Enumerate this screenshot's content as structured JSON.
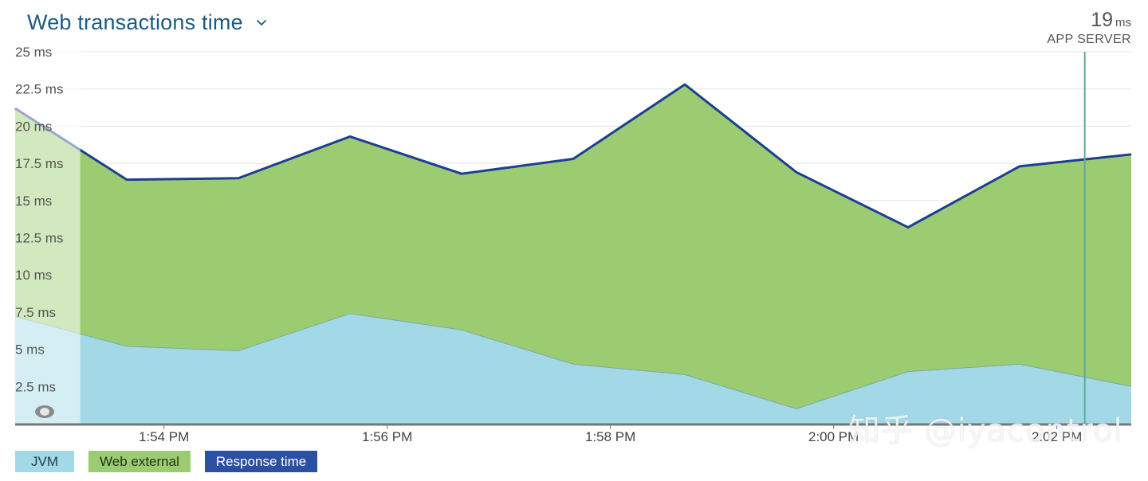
{
  "header": {
    "title": "Web transactions time"
  },
  "readout": {
    "value": "19",
    "unit": "ms",
    "label": "APP SERVER"
  },
  "legend": {
    "items": [
      "JVM",
      "Web external",
      "Response time"
    ]
  },
  "watermark": "知乎 @iyacontrol",
  "colors": {
    "jvm": "#a3d9e6",
    "web_external": "#9ccc72",
    "response_time": "#1d3f8f",
    "cursor_line": "#5aab9b",
    "title": "#1c5a83"
  },
  "chart_data": {
    "type": "area",
    "stacked": true,
    "y_unit": "ms",
    "ylim": [
      0,
      25
    ],
    "y_ticks": [
      {
        "value": 2.5,
        "label": "2.5 ms"
      },
      {
        "value": 5,
        "label": "5 ms"
      },
      {
        "value": 7.5,
        "label": "7.5 ms"
      },
      {
        "value": 10,
        "label": "10 ms"
      },
      {
        "value": 12.5,
        "label": "12.5 ms"
      },
      {
        "value": 15,
        "label": "15 ms"
      },
      {
        "value": 17.5,
        "label": "17.5 ms"
      },
      {
        "value": 20,
        "label": "20 ms"
      },
      {
        "value": 22.5,
        "label": "22.5 ms"
      },
      {
        "value": 25,
        "label": "25 ms"
      }
    ],
    "x_unit": "minutes",
    "xlim": [
      "1:52:40 PM",
      "2:02:40 PM"
    ],
    "x_ticks": [
      {
        "time": "1:54 PM",
        "label": "1:54 PM"
      },
      {
        "time": "1:56 PM",
        "label": "1:56 PM"
      },
      {
        "time": "1:58 PM",
        "label": "1:58 PM"
      },
      {
        "time": "2:00 PM",
        "label": "2:00 PM"
      },
      {
        "time": "2:02 PM",
        "label": "2:02 PM"
      }
    ],
    "x": [
      "1:52:40 PM",
      "1:53:40 PM",
      "1:54:40 PM",
      "1:55:40 PM",
      "1:56:40 PM",
      "1:57:40 PM",
      "1:58:40 PM",
      "1:59:40 PM",
      "2:00:40 PM",
      "2:01:40 PM",
      "2:02:40 PM"
    ],
    "series": [
      {
        "name": "JVM",
        "values": [
          7.2,
          5.2,
          4.9,
          7.4,
          6.3,
          4.0,
          3.3,
          1.0,
          3.5,
          4.0,
          2.5
        ]
      },
      {
        "name": "Web external",
        "values": [
          14.0,
          11.2,
          11.6,
          11.9,
          10.5,
          13.8,
          19.5,
          15.9,
          9.7,
          13.3,
          15.6
        ]
      },
      {
        "name": "Response time",
        "values": [
          21.2,
          16.4,
          16.5,
          19.3,
          16.8,
          17.8,
          22.8,
          16.9,
          13.2,
          17.3,
          18.1
        ]
      }
    ],
    "grid": true,
    "legend": "bottom-left",
    "cursor": {
      "time": "2:02:15 PM"
    },
    "selection_shade": {
      "from": "1:52:40 PM",
      "to": "1:53:15 PM"
    }
  }
}
